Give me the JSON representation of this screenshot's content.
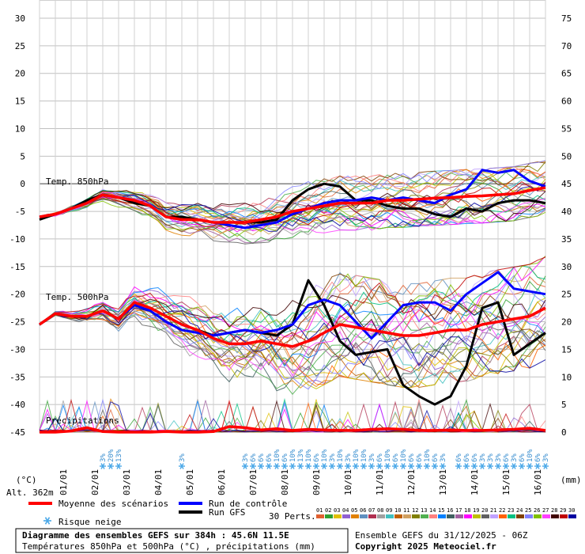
{
  "chart_data": {
    "type": "line",
    "title": "Diagramme des ensembles GEFS sur 384h : 45.6N 11.5E",
    "subtitle": "Températures 850hPa et 500hPa (°C) , précipitations (mm)",
    "run_label": "Ensemble GEFS du 31/12/2025 - 06Z",
    "copyright": "Copyright 2025 Meteociel.fr",
    "left_axis": {
      "unit": "(°C)",
      "ticks": [
        30,
        25,
        20,
        15,
        10,
        5,
        0,
        -5,
        -10,
        -15,
        -20,
        -25,
        -30,
        -35,
        -40,
        -45
      ],
      "range": [
        -45,
        30
      ]
    },
    "right_axis": {
      "unit": "(mm)",
      "ticks": [
        75,
        70,
        65,
        60,
        55,
        50,
        45,
        40,
        35,
        30,
        25,
        20,
        15,
        10,
        5,
        0
      ],
      "range": [
        0,
        75
      ]
    },
    "altitude": "Alt. 362m",
    "x_range_hours": [
      0,
      384
    ],
    "x_ticks": [
      {
        "label": "01/01",
        "hour": 18
      },
      {
        "label": "02/01",
        "hour": 42
      },
      {
        "label": "03/01",
        "hour": 66
      },
      {
        "label": "04/01",
        "hour": 90
      },
      {
        "label": "05/01",
        "hour": 114
      },
      {
        "label": "06/01",
        "hour": 138
      },
      {
        "label": "07/01",
        "hour": 162
      },
      {
        "label": "08/01",
        "hour": 186
      },
      {
        "label": "09/01",
        "hour": 210
      },
      {
        "label": "10/01",
        "hour": 234
      },
      {
        "label": "11/01",
        "hour": 258
      },
      {
        "label": "12/01",
        "hour": 282
      },
      {
        "label": "13/01",
        "hour": 306
      },
      {
        "label": "14/01",
        "hour": 330
      },
      {
        "label": "15/01",
        "hour": 354
      },
      {
        "label": "16/01",
        "hour": 378
      }
    ],
    "annotations": {
      "t850": "Temp. 850hPa",
      "t500": "Temp. 500hPa",
      "precip": "Précipitations"
    },
    "legend": {
      "mean": "Moyenne des scénarios",
      "control": "Run de contrôle",
      "gfs": "Run GFS",
      "snow": "Risque neige",
      "perts": "30 Perts."
    },
    "pert_labels": [
      "01",
      "02",
      "03",
      "04",
      "05",
      "06",
      "07",
      "08",
      "09",
      "10",
      "11",
      "12",
      "13",
      "14",
      "15",
      "16",
      "17",
      "18",
      "19",
      "20",
      "21",
      "22",
      "23",
      "24",
      "25",
      "26",
      "27",
      "28",
      "29",
      "30"
    ],
    "pert_colors": [
      "#e06030",
      "#30a030",
      "#e0c000",
      "#9060d0",
      "#e08000",
      "#6090c0",
      "#b03050",
      "#a0a0a0",
      "#40c0c0",
      "#c06000",
      "#d0a060",
      "#808000",
      "#50b050",
      "#ff8080",
      "#0080ff",
      "#406060",
      "#a060a0",
      "#ff00ff",
      "#c0c000",
      "#606060",
      "#c0a0ff",
      "#ff6000",
      "#00c080",
      "#804000",
      "#8080ff",
      "#80c000",
      "#ff40ff",
      "#400000",
      "#c00000",
      "#0000a0"
    ],
    "series_colors": {
      "mean": "#ff0000",
      "control": "#0000ff",
      "gfs": "#000000"
    },
    "series": [
      {
        "name": "Moyenne des scénarios",
        "level": "850hPa",
        "hours": [
          0,
          12,
          24,
          36,
          48,
          60,
          72,
          84,
          96,
          108,
          120,
          132,
          144,
          156,
          168,
          180,
          192,
          204,
          216,
          228,
          240,
          252,
          264,
          276,
          288,
          300,
          312,
          324,
          336,
          348,
          360,
          372,
          384
        ],
        "values": [
          -6,
          -5.5,
          -4.5,
          -3.5,
          -2,
          -2.5,
          -3,
          -4,
          -6,
          -6.5,
          -6.5,
          -7,
          -7,
          -7,
          -6.5,
          -6,
          -5,
          -4.5,
          -4,
          -3.5,
          -3.5,
          -3.5,
          -3,
          -3,
          -2.8,
          -2.6,
          -2.5,
          -2.3,
          -2.2,
          -2,
          -1.8,
          -1.2,
          -0.7
        ]
      },
      {
        "name": "Run de contrôle",
        "level": "850hPa",
        "hours": [
          0,
          12,
          24,
          36,
          48,
          60,
          72,
          84,
          96,
          108,
          120,
          132,
          144,
          156,
          168,
          180,
          192,
          204,
          216,
          228,
          240,
          252,
          264,
          276,
          288,
          300,
          312,
          324,
          336,
          348,
          360,
          372,
          384
        ],
        "values": [
          -6,
          -5.5,
          -4.5,
          -3.5,
          -2,
          -2.5,
          -3,
          -4,
          -6,
          -6.5,
          -6.5,
          -7,
          -7.5,
          -8,
          -7.5,
          -7,
          -5.5,
          -4.5,
          -3.5,
          -3,
          -3,
          -2.5,
          -3,
          -2.5,
          -3,
          -3.5,
          -2,
          -1,
          2.5,
          2,
          2.5,
          0.5,
          -0.5
        ]
      },
      {
        "name": "Run GFS",
        "level": "850hPa",
        "hours": [
          0,
          12,
          24,
          36,
          48,
          60,
          72,
          84,
          96,
          108,
          120,
          132,
          144,
          156,
          168,
          180,
          192,
          204,
          216,
          228,
          240,
          252,
          264,
          276,
          288,
          300,
          312,
          324,
          336,
          348,
          360,
          372,
          384
        ],
        "values": [
          -6.5,
          -5.5,
          -4.5,
          -3,
          -2,
          -2.5,
          -3.5,
          -4,
          -6,
          -6,
          -6.5,
          -7,
          -7,
          -7,
          -7,
          -6.5,
          -3,
          -1,
          0,
          -0.5,
          -3,
          -3,
          -4,
          -4.5,
          -4.5,
          -5.5,
          -6,
          -4.5,
          -5,
          -3.5,
          -3,
          -3,
          -3.5
        ]
      },
      {
        "name": "Moyenne des scénarios",
        "level": "500hPa",
        "hours": [
          0,
          12,
          24,
          36,
          48,
          60,
          72,
          84,
          96,
          108,
          120,
          132,
          144,
          156,
          168,
          180,
          192,
          204,
          216,
          228,
          240,
          252,
          264,
          276,
          288,
          300,
          312,
          324,
          336,
          348,
          360,
          372,
          384
        ],
        "values": [
          -25.5,
          -23.5,
          -24,
          -24,
          -23,
          -24.5,
          -21.5,
          -22.5,
          -24,
          -25.5,
          -26.5,
          -28,
          -29,
          -29,
          -28.5,
          -29,
          -29.5,
          -28.5,
          -27,
          -25.5,
          -26,
          -26.5,
          -27,
          -27.5,
          -27.5,
          -27,
          -26.5,
          -26.5,
          -25.5,
          -25,
          -24.5,
          -24,
          -22.5
        ]
      },
      {
        "name": "Run de contrôle",
        "level": "500hPa",
        "hours": [
          0,
          12,
          24,
          36,
          48,
          60,
          72,
          84,
          96,
          108,
          120,
          132,
          144,
          156,
          168,
          180,
          192,
          204,
          216,
          228,
          240,
          252,
          264,
          276,
          288,
          300,
          312,
          324,
          336,
          348,
          360,
          372,
          384
        ],
        "values": [
          -25.5,
          -23.5,
          -24,
          -24,
          -23,
          -24.5,
          -22,
          -23,
          -25,
          -26.5,
          -27,
          -27.5,
          -27,
          -26.5,
          -27,
          -26.5,
          -25.5,
          -22,
          -21,
          -22,
          -25,
          -28,
          -25,
          -22,
          -21.5,
          -21.5,
          -23,
          -20,
          -18,
          -16,
          -19,
          -19.5,
          -20
        ]
      },
      {
        "name": "Run GFS",
        "level": "500hPa",
        "hours": [
          0,
          12,
          24,
          36,
          48,
          60,
          72,
          84,
          96,
          108,
          120,
          132,
          144,
          156,
          168,
          180,
          192,
          204,
          216,
          228,
          240,
          252,
          264,
          276,
          288,
          300,
          312,
          324,
          336,
          348,
          360,
          372,
          384
        ],
        "values": [
          -25.5,
          -23.5,
          -24,
          -24,
          -23,
          -24.5,
          -21.5,
          -22.5,
          -24,
          -25.5,
          -26.5,
          -27.5,
          -27,
          -26.5,
          -27,
          -27.5,
          -25.5,
          -17.5,
          -22,
          -28.5,
          -31,
          -30.5,
          -30,
          -36.5,
          -38.5,
          -40,
          -38.5,
          -33,
          -22.5,
          -21.5,
          -31,
          -29,
          -27
        ]
      },
      {
        "name": "Moyenne des scénarios",
        "level": "precip",
        "hours": [
          0,
          12,
          24,
          36,
          48,
          60,
          72,
          84,
          96,
          108,
          120,
          132,
          144,
          156,
          168,
          180,
          192,
          204,
          216,
          228,
          240,
          252,
          264,
          276,
          288,
          300,
          312,
          324,
          336,
          348,
          360,
          372,
          384
        ],
        "values": [
          0,
          0,
          0.2,
          0.8,
          0.1,
          0,
          0,
          0,
          0.1,
          0,
          0,
          0.1,
          1,
          0.8,
          0.4,
          0.6,
          0.3,
          0.5,
          0.4,
          0.3,
          0.3,
          0.5,
          0.6,
          0.5,
          0.3,
          0.3,
          0.4,
          0.3,
          0.3,
          0.4,
          0.5,
          0.7,
          0.3
        ]
      }
    ],
    "snow_risk": [
      {
        "hour": 48,
        "pct": "3%"
      },
      {
        "hour": 54,
        "pct": "20%"
      },
      {
        "hour": 60,
        "pct": "13%"
      },
      {
        "hour": 108,
        "pct": "3%"
      },
      {
        "hour": 156,
        "pct": "3%"
      },
      {
        "hour": 162,
        "pct": "6%"
      },
      {
        "hour": 168,
        "pct": "6%"
      },
      {
        "hour": 174,
        "pct": "6%"
      },
      {
        "hour": 180,
        "pct": "10%"
      },
      {
        "hour": 186,
        "pct": "6%"
      },
      {
        "hour": 192,
        "pct": "10%"
      },
      {
        "hour": 198,
        "pct": "13%"
      },
      {
        "hour": 204,
        "pct": "10%"
      },
      {
        "hour": 210,
        "pct": "6%"
      },
      {
        "hour": 216,
        "pct": "10%"
      },
      {
        "hour": 222,
        "pct": "3%"
      },
      {
        "hour": 228,
        "pct": "10%"
      },
      {
        "hour": 234,
        "pct": "3%"
      },
      {
        "hour": 240,
        "pct": "10%"
      },
      {
        "hour": 246,
        "pct": "10%"
      },
      {
        "hour": 252,
        "pct": "3%"
      },
      {
        "hour": 258,
        "pct": "6%"
      },
      {
        "hour": 264,
        "pct": "10%"
      },
      {
        "hour": 270,
        "pct": "6%"
      },
      {
        "hour": 276,
        "pct": "10%"
      },
      {
        "hour": 282,
        "pct": "6%"
      },
      {
        "hour": 288,
        "pct": "6%"
      },
      {
        "hour": 294,
        "pct": "10%"
      },
      {
        "hour": 300,
        "pct": "6%"
      },
      {
        "hour": 306,
        "pct": "3%"
      },
      {
        "hour": 318,
        "pct": "6%"
      },
      {
        "hour": 324,
        "pct": "6%"
      },
      {
        "hour": 330,
        "pct": "6%"
      },
      {
        "hour": 336,
        "pct": "3%"
      },
      {
        "hour": 342,
        "pct": "3%"
      },
      {
        "hour": 348,
        "pct": "3%"
      },
      {
        "hour": 354,
        "pct": "6%"
      },
      {
        "hour": 360,
        "pct": "3%"
      },
      {
        "hour": 366,
        "pct": "6%"
      },
      {
        "hour": 372,
        "pct": "10%"
      },
      {
        "hour": 378,
        "pct": "6%"
      },
      {
        "hour": 384,
        "pct": "3%"
      }
    ]
  }
}
